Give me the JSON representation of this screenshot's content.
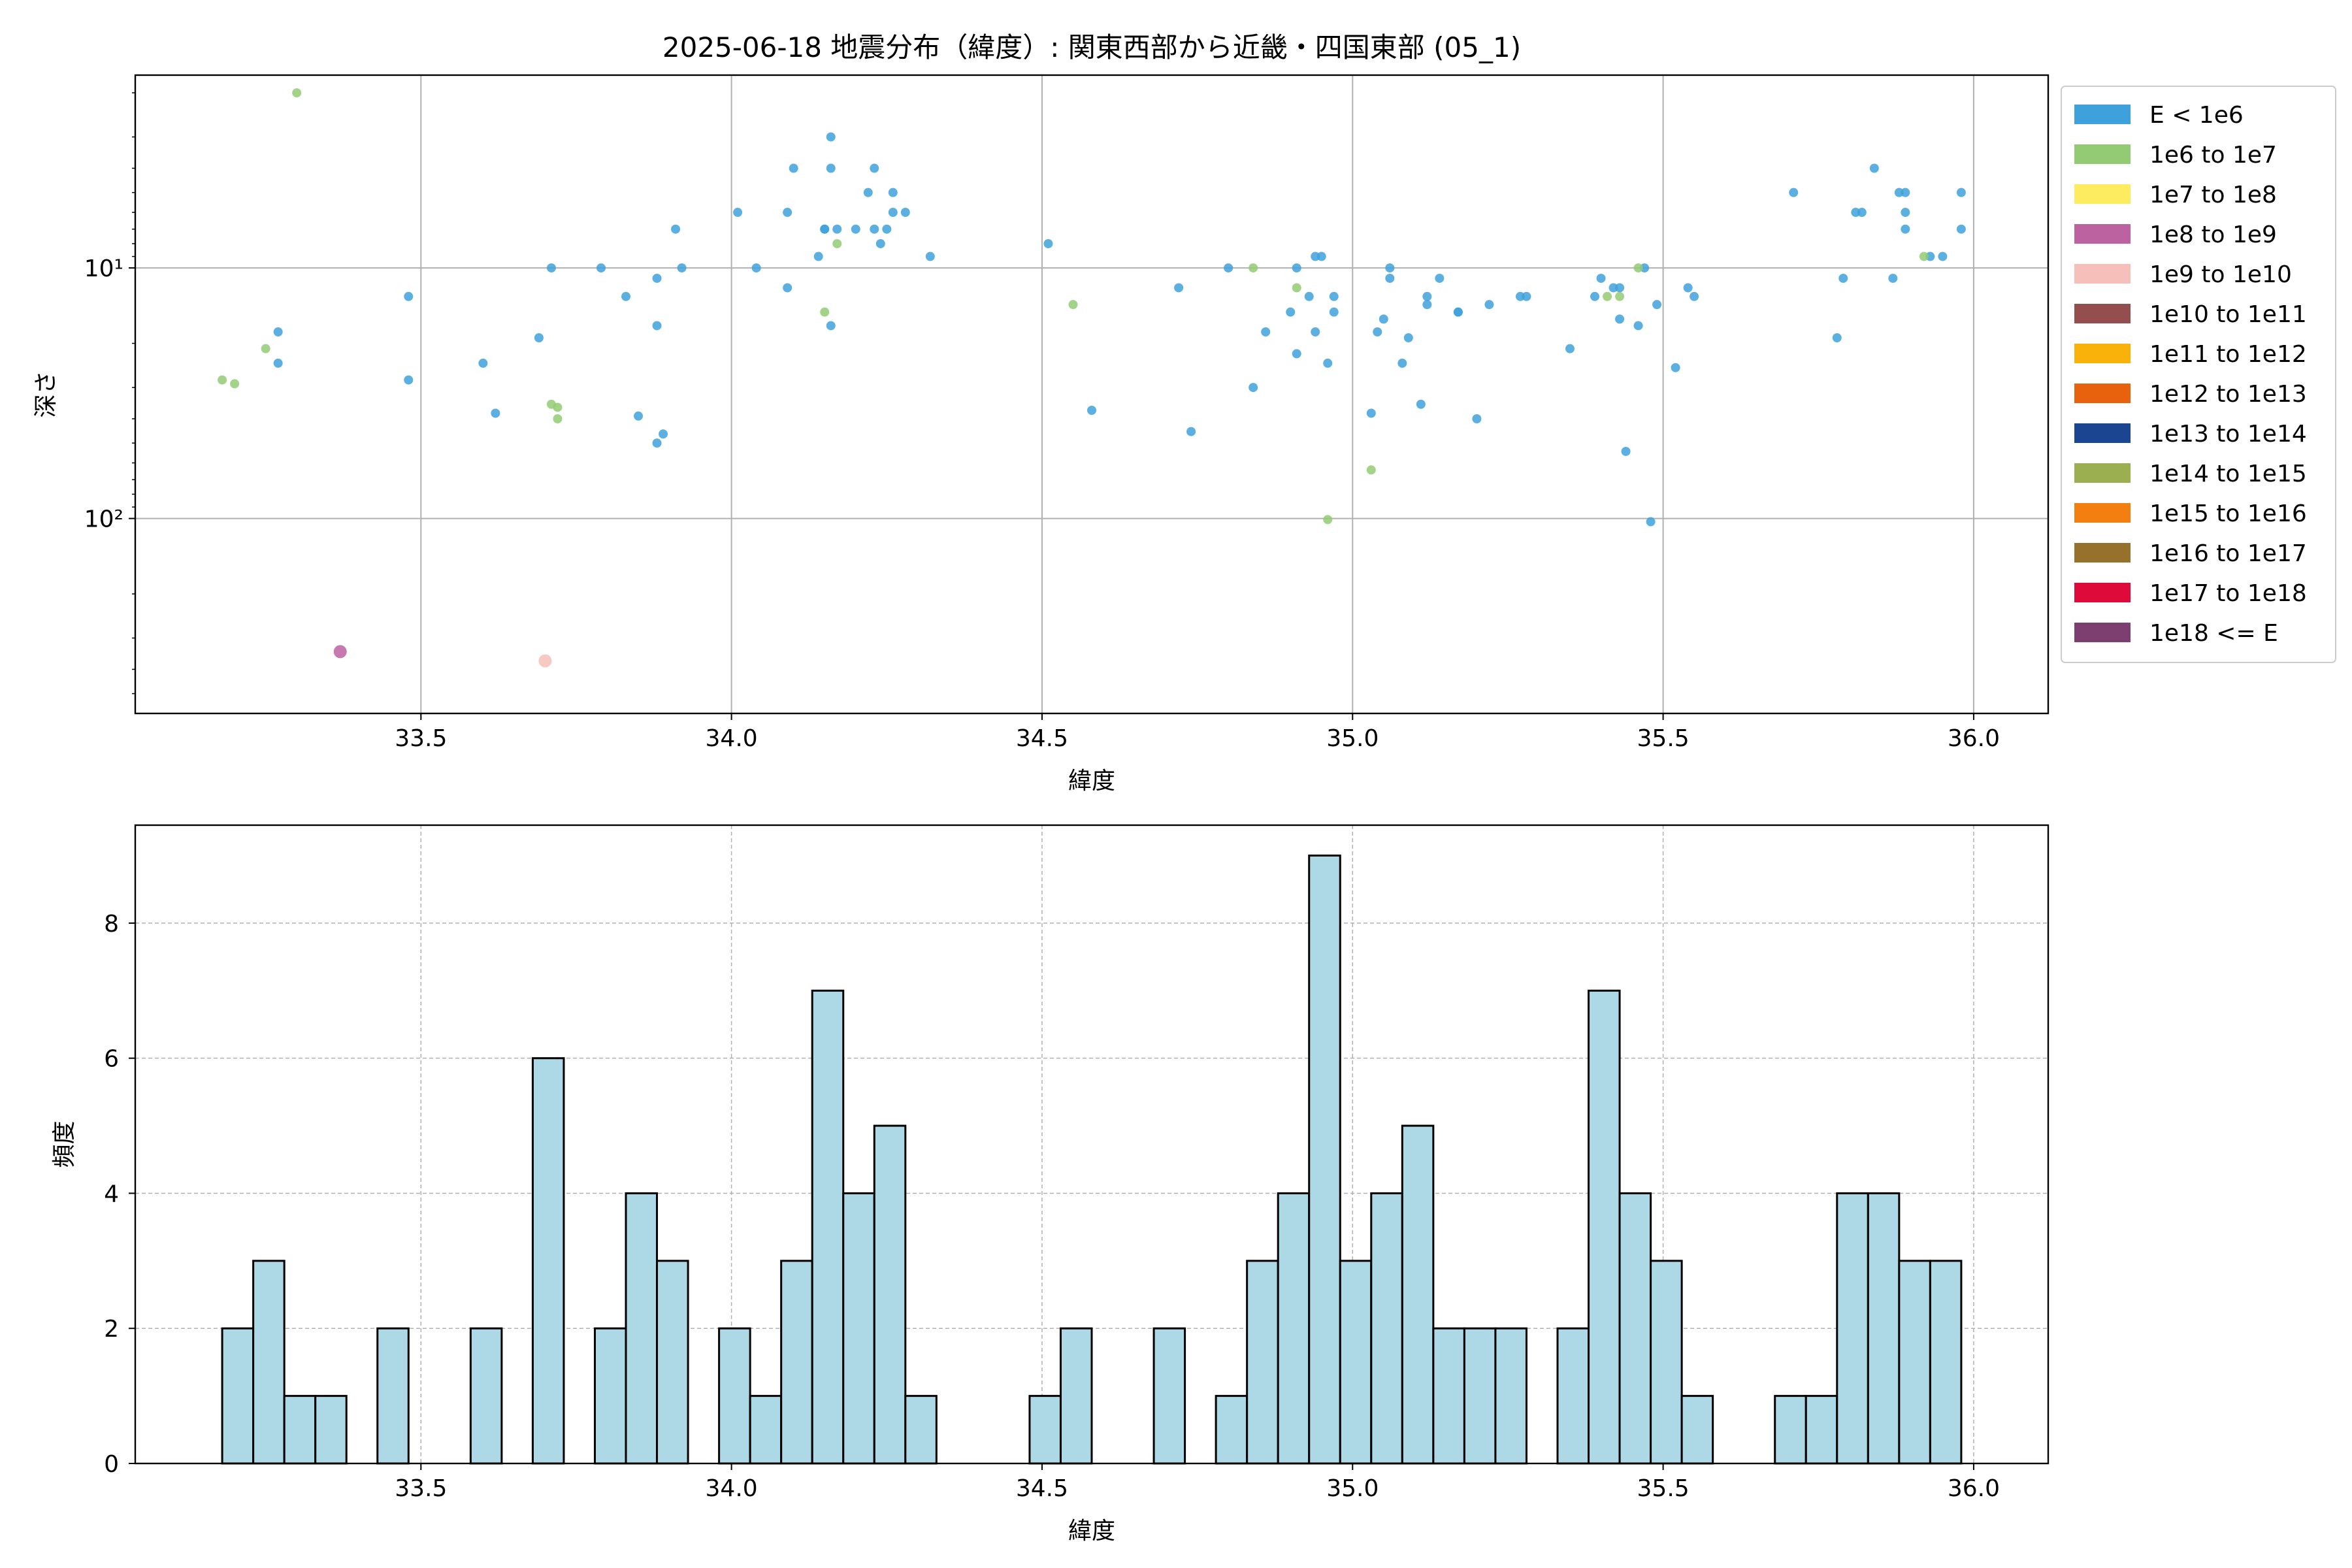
{
  "chart_data": [
    {
      "type": "scatter",
      "title": "2025-06-18 地震分布（緯度）: 関東西部から近畿・四国東部 (05_1)",
      "xlabel": "緯度",
      "ylabel": "深さ",
      "xlim": [
        33.04,
        36.12
      ],
      "ylim": [
        -170,
        62
      ],
      "yscale": "log",
      "y_inverted": true,
      "xticks": [
        "33.5",
        "34.0",
        "34.5",
        "35.0",
        "35.5",
        "36.0"
      ],
      "yticks": [
        "10¹",
        "10²"
      ],
      "grid": true,
      "legend_position": "outside-right",
      "legend": [
        {
          "label": "E < 1e6",
          "color": "#3ea1dc"
        },
        {
          "label": "1e6 to 1e7",
          "color": "#93cb74"
        },
        {
          "label": "1e7 to 1e8",
          "color": "#fdec60"
        },
        {
          "label": "1e8 to 1e9",
          "color": "#bd62a1"
        },
        {
          "label": "1e9 to 1e10",
          "color": "#f6bfb9"
        },
        {
          "label": "1e10 to 1e11",
          "color": "#954e4e"
        },
        {
          "label": "1e11 to 1e12",
          "color": "#f9b209"
        },
        {
          "label": "1e12 to 1e13",
          "color": "#e8620e"
        },
        {
          "label": "1e13 to 1e14",
          "color": "#1b4590"
        },
        {
          "label": "1e14 to 1e15",
          "color": "#9baf51"
        },
        {
          "label": "1e15 to 1e16",
          "color": "#f27f0f"
        },
        {
          "label": "1e16 to 1e17",
          "color": "#95712c"
        },
        {
          "label": "1e17 to 1e18",
          "color": "#dd0a3a"
        },
        {
          "label": "1e18 <= E",
          "color": "#7d3f6f"
        }
      ],
      "series": [
        {
          "legend_index": 0,
          "points": [
            [
              33.27,
              18
            ],
            [
              33.27,
              24
            ],
            [
              33.48,
              13
            ],
            [
              33.48,
              28
            ],
            [
              33.6,
              24
            ],
            [
              33.62,
              38
            ],
            [
              33.69,
              19
            ],
            [
              33.71,
              10
            ],
            [
              33.79,
              10
            ],
            [
              33.83,
              13
            ],
            [
              33.85,
              39
            ],
            [
              33.88,
              50
            ],
            [
              33.88,
              11
            ],
            [
              33.88,
              17
            ],
            [
              33.89,
              46
            ],
            [
              33.91,
              7
            ],
            [
              33.92,
              10
            ],
            [
              34.01,
              6
            ],
            [
              34.04,
              10
            ],
            [
              34.09,
              6
            ],
            [
              34.09,
              12
            ],
            [
              34.1,
              4
            ],
            [
              34.14,
              9
            ],
            [
              34.15,
              7
            ],
            [
              34.15,
              7
            ],
            [
              34.16,
              17
            ],
            [
              34.16,
              3
            ],
            [
              34.16,
              4
            ],
            [
              34.17,
              7
            ],
            [
              34.2,
              7
            ],
            [
              34.22,
              5
            ],
            [
              34.23,
              4
            ],
            [
              34.23,
              7
            ],
            [
              34.24,
              8
            ],
            [
              34.25,
              7
            ],
            [
              34.26,
              5
            ],
            [
              34.26,
              6
            ],
            [
              34.28,
              6
            ],
            [
              34.32,
              9
            ],
            [
              34.51,
              8
            ],
            [
              34.58,
              37
            ],
            [
              34.72,
              12
            ],
            [
              34.74,
              45
            ],
            [
              34.8,
              10
            ],
            [
              34.84,
              30
            ],
            [
              34.86,
              18
            ],
            [
              34.9,
              15
            ],
            [
              34.91,
              10
            ],
            [
              34.91,
              22
            ],
            [
              34.93,
              13
            ],
            [
              34.94,
              18
            ],
            [
              34.94,
              9
            ],
            [
              34.95,
              9
            ],
            [
              34.96,
              24
            ],
            [
              34.97,
              13
            ],
            [
              34.97,
              15
            ],
            [
              35.03,
              38
            ],
            [
              35.04,
              18
            ],
            [
              35.05,
              16
            ],
            [
              35.06,
              10
            ],
            [
              35.06,
              11
            ],
            [
              35.08,
              24
            ],
            [
              35.09,
              19
            ],
            [
              35.11,
              35
            ],
            [
              35.12,
              13
            ],
            [
              35.12,
              14
            ],
            [
              35.14,
              11
            ],
            [
              35.17,
              15
            ],
            [
              35.17,
              15
            ],
            [
              35.2,
              40
            ],
            [
              35.22,
              14
            ],
            [
              35.27,
              13
            ],
            [
              35.28,
              13
            ],
            [
              35.35,
              21
            ],
            [
              35.39,
              13
            ],
            [
              35.4,
              11
            ],
            [
              35.42,
              12
            ],
            [
              35.43,
              16
            ],
            [
              35.43,
              12
            ],
            [
              35.44,
              54
            ],
            [
              35.46,
              17
            ],
            [
              35.47,
              10
            ],
            [
              35.48,
              103
            ],
            [
              35.49,
              14
            ],
            [
              35.52,
              25
            ],
            [
              35.54,
              12
            ],
            [
              35.55,
              13
            ],
            [
              35.71,
              5
            ],
            [
              35.78,
              19
            ],
            [
              35.79,
              11
            ],
            [
              35.81,
              6
            ],
            [
              35.82,
              6
            ],
            [
              35.84,
              4
            ],
            [
              35.87,
              11
            ],
            [
              35.88,
              5
            ],
            [
              35.89,
              5
            ],
            [
              35.89,
              7
            ],
            [
              35.89,
              6
            ],
            [
              35.93,
              9
            ],
            [
              35.95,
              9
            ],
            [
              35.98,
              5
            ],
            [
              35.98,
              7
            ]
          ]
        },
        {
          "legend_index": 1,
          "points": [
            [
              33.18,
              28
            ],
            [
              33.2,
              29
            ],
            [
              33.25,
              21
            ],
            [
              33.3,
              2
            ],
            [
              33.71,
              35
            ],
            [
              33.72,
              36
            ],
            [
              33.72,
              40
            ],
            [
              34.15,
              15
            ],
            [
              34.17,
              8
            ],
            [
              34.55,
              14
            ],
            [
              34.84,
              10
            ],
            [
              34.91,
              12
            ],
            [
              34.96,
              101
            ],
            [
              35.03,
              64
            ],
            [
              35.41,
              13
            ],
            [
              35.43,
              13
            ],
            [
              35.46,
              10
            ],
            [
              35.92,
              9
            ]
          ]
        },
        {
          "legend_index": 3,
          "points": [
            [
              33.37,
              340
            ]
          ]
        },
        {
          "legend_index": 4,
          "points": [
            [
              33.7,
              370
            ]
          ]
        }
      ]
    },
    {
      "type": "bar",
      "subtype": "histogram",
      "xlabel": "緯度",
      "ylabel": "頻度",
      "xlim": [
        33.04,
        36.12
      ],
      "ylim": [
        0,
        9.45
      ],
      "xticks": [
        "33.5",
        "34.0",
        "34.5",
        "35.0",
        "35.5",
        "36.0"
      ],
      "yticks": [
        "0",
        "2",
        "4",
        "6",
        "8"
      ],
      "grid": true,
      "bar_color": "#add8e6",
      "bin_start": 33.18,
      "bin_width": 0.05,
      "counts": [
        2,
        3,
        1,
        1,
        0,
        2,
        0,
        0,
        2,
        0,
        6,
        0,
        2,
        4,
        3,
        0,
        2,
        1,
        3,
        7,
        4,
        5,
        1,
        0,
        0,
        0,
        1,
        2,
        0,
        0,
        2,
        0,
        1,
        3,
        4,
        9,
        3,
        4,
        5,
        2,
        2,
        2,
        0,
        2,
        7,
        4,
        3,
        1,
        0,
        0,
        1,
        1,
        4,
        4,
        3,
        3
      ]
    }
  ]
}
